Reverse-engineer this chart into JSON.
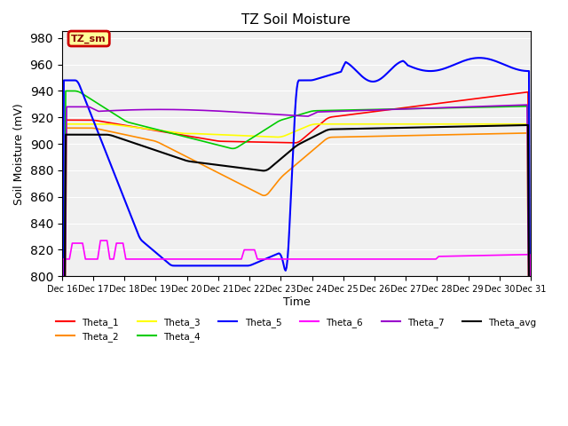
{
  "title": "TZ Soil Moisture",
  "ylabel": "Soil Moisture (mV)",
  "xlabel": "Time",
  "legend_label": "TZ_sm",
  "ylim": [
    800,
    985
  ],
  "yticks": [
    800,
    820,
    840,
    860,
    880,
    900,
    920,
    940,
    960,
    980
  ],
  "colors": {
    "Theta_1": "#FF0000",
    "Theta_2": "#FF8C00",
    "Theta_3": "#FFFF00",
    "Theta_4": "#00CC00",
    "Theta_5": "#0000FF",
    "Theta_6": "#FF00FF",
    "Theta_7": "#9900CC",
    "Theta_avg": "#000000"
  },
  "plot_bg": "#F0F0F0",
  "legend_bg": "#FFFF99",
  "legend_border": "#CC0000"
}
